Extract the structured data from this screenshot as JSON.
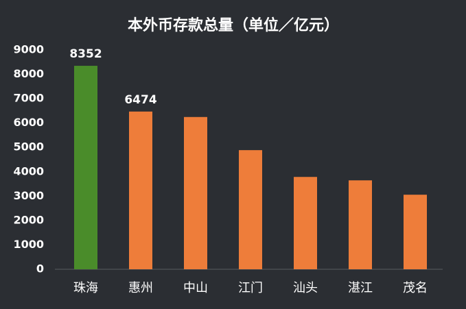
{
  "chart_data": {
    "type": "bar",
    "title": "本外币存款总量（单位／亿元）",
    "categories": [
      "珠海",
      "惠州",
      "中山",
      "江门",
      "汕头",
      "湛江",
      "茂名"
    ],
    "values": [
      8352,
      6474,
      6250,
      4890,
      3790,
      3650,
      3060
    ],
    "colors": [
      "#4a8c2a",
      "#ee7d3a",
      "#ee7d3a",
      "#ee7d3a",
      "#ee7d3a",
      "#ee7d3a",
      "#ee7d3a"
    ],
    "labeled": [
      true,
      true,
      false,
      false,
      false,
      false,
      false
    ],
    "ylim": [
      0,
      9000
    ],
    "yticks": [
      0,
      1000,
      2000,
      3000,
      4000,
      5000,
      6000,
      7000,
      8000,
      9000
    ],
    "grid": false
  }
}
